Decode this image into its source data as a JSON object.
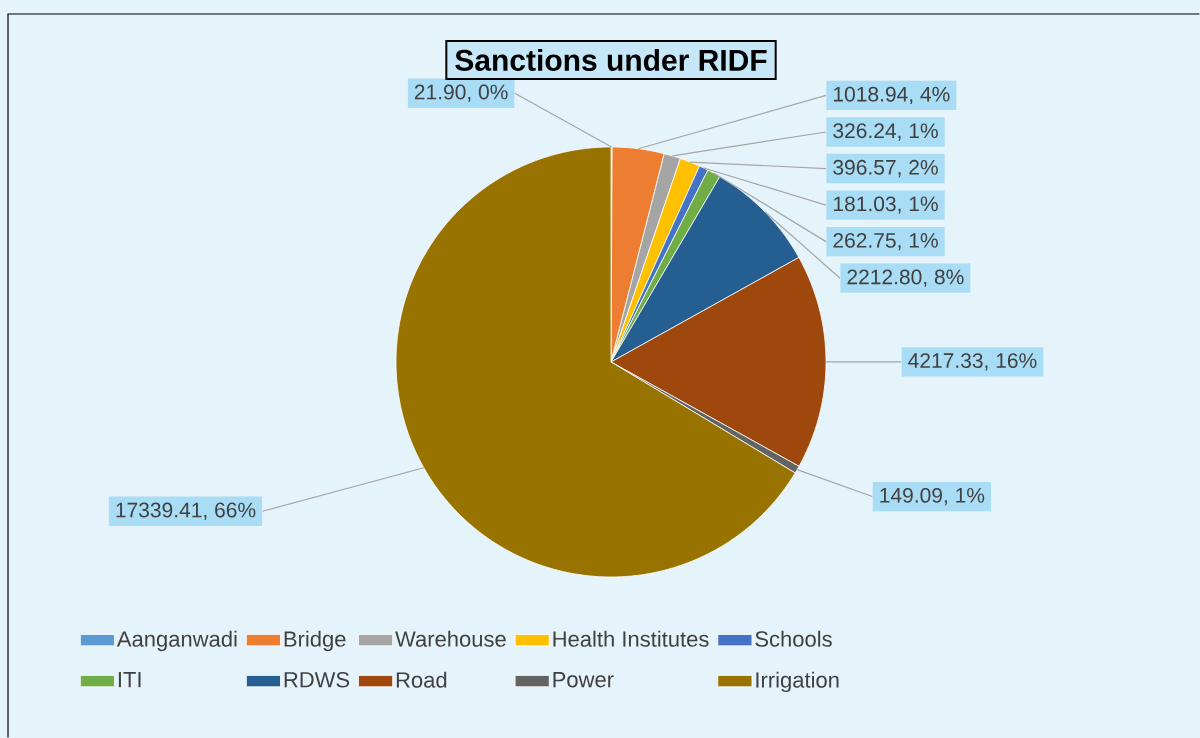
{
  "chart_data": {
    "type": "pie",
    "title": "Sanctions under RIDF",
    "categories": [
      "Aanganwadi",
      "Bridge",
      "Warehouse",
      "Health Institutes",
      "Schools",
      "ITI",
      "RDWS",
      "Road",
      "Power",
      "Irrigation"
    ],
    "values": [
      21.9,
      1018.94,
      326.24,
      396.57,
      181.03,
      262.75,
      2212.8,
      4217.33,
      149.09,
      17339.41
    ],
    "value_labels": [
      "21.90, 0%",
      "1018.94, 4%",
      "326.24, 1%",
      "396.57, 2%",
      "181.03, 1%",
      "262.75, 1%",
      "2212.80, 8%",
      "4217.33, 16%",
      "149.09, 1%",
      "17339.41, 66%"
    ],
    "colors": [
      "#5b9bd5",
      "#ed7d31",
      "#a5a5a5",
      "#ffc000",
      "#4472c4",
      "#70ad47",
      "#255e91",
      "#9e480e",
      "#636363",
      "#997300"
    ],
    "legend": "bottom"
  }
}
